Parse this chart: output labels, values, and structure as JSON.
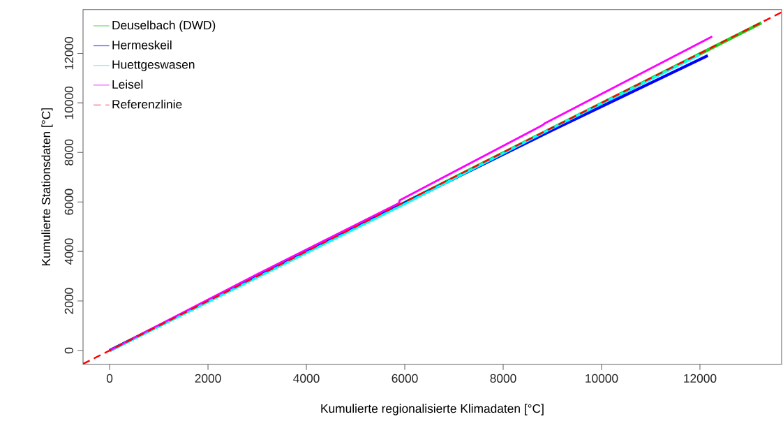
{
  "chart_data": {
    "type": "line",
    "xlabel": "Kumulierte regionalisierte Klimadaten [°C]",
    "ylabel": "Kumulierte Stationsdaten [°C]",
    "xlim": [
      -540,
      13660
    ],
    "ylim": [
      -555,
      13770
    ],
    "xticks": [
      0,
      2000,
      4000,
      6000,
      8000,
      10000,
      12000
    ],
    "yticks": [
      0,
      2000,
      4000,
      6000,
      8000,
      10000,
      12000
    ],
    "grid": false,
    "legend": "top left",
    "marker": "none",
    "series": [
      {
        "name": "Deuselbach (DWD)",
        "color": "#22cc22",
        "line_style": "solid",
        "x": [
          0,
          6000,
          13250
        ],
        "values": [
          0,
          5980,
          13230
        ]
      },
      {
        "name": "Hermeskeil",
        "color": "#0000ff",
        "line_style": "solid",
        "x": [
          0,
          3000,
          6000,
          9000,
          12160
        ],
        "values": [
          0,
          2990,
          5960,
          8900,
          11910
        ]
      },
      {
        "name": "Huettgeswasen",
        "color": "#00ffff",
        "line_style": "solid",
        "x": [
          0,
          3000,
          6000,
          9000,
          12000
        ],
        "values": [
          -20,
          2950,
          5920,
          8980,
          11950
        ]
      },
      {
        "name": "Leisel",
        "color": "#ff00ff",
        "line_style": "solid",
        "x": [
          0,
          3000,
          5880,
          5900,
          8800,
          8850,
          12250
        ],
        "values": [
          0,
          3080,
          5950,
          6070,
          9100,
          9180,
          12680
        ]
      },
      {
        "name": "Referenzlinie",
        "color": "#ff0000",
        "line_style": "dashed",
        "x": [
          -540,
          13660
        ],
        "values": [
          -540,
          13660
        ]
      }
    ]
  }
}
